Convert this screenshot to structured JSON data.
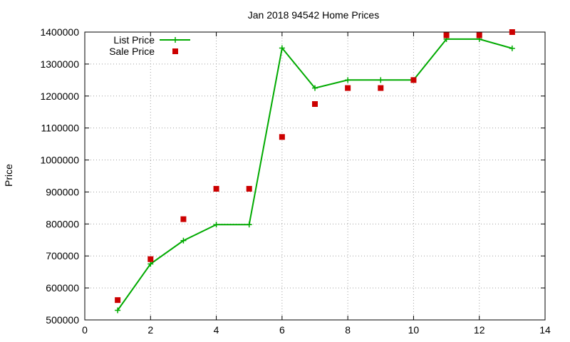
{
  "chart_data": {
    "type": "scatter",
    "title": "Jan 2018 94542 Home Prices",
    "xlabel": "",
    "ylabel": "Price",
    "xlim": [
      0,
      14
    ],
    "ylim": [
      500000,
      1400000
    ],
    "x_ticks": [
      0,
      2,
      4,
      6,
      8,
      10,
      12,
      14
    ],
    "y_ticks": [
      500000,
      600000,
      700000,
      800000,
      900000,
      1000000,
      1100000,
      1200000,
      1300000,
      1400000
    ],
    "grid": true,
    "legend_position": "top-left",
    "series": [
      {
        "name": "List Price",
        "style": "line+cross",
        "color": "#00aa00",
        "points": [
          [
            1,
            530000
          ],
          [
            2,
            675000
          ],
          [
            3,
            748000
          ],
          [
            4,
            798000
          ],
          [
            5,
            798000
          ],
          [
            6,
            1350000
          ],
          [
            7,
            1225000
          ],
          [
            8,
            1250000
          ],
          [
            9,
            1250000
          ],
          [
            10,
            1250000
          ],
          [
            11,
            1378000
          ],
          [
            12,
            1378000
          ],
          [
            13,
            1349000
          ]
        ]
      },
      {
        "name": "Sale Price",
        "style": "square",
        "color": "#cc0000",
        "points": [
          [
            1,
            562000
          ],
          [
            2,
            690000
          ],
          [
            3,
            815000
          ],
          [
            4,
            910000
          ],
          [
            5,
            910000
          ],
          [
            6,
            1072000
          ],
          [
            7,
            1175000
          ],
          [
            8,
            1225000
          ],
          [
            9,
            1225000
          ],
          [
            10,
            1250000
          ],
          [
            11,
            1390000
          ],
          [
            12,
            1390000
          ],
          [
            13,
            1400000
          ]
        ]
      }
    ]
  }
}
